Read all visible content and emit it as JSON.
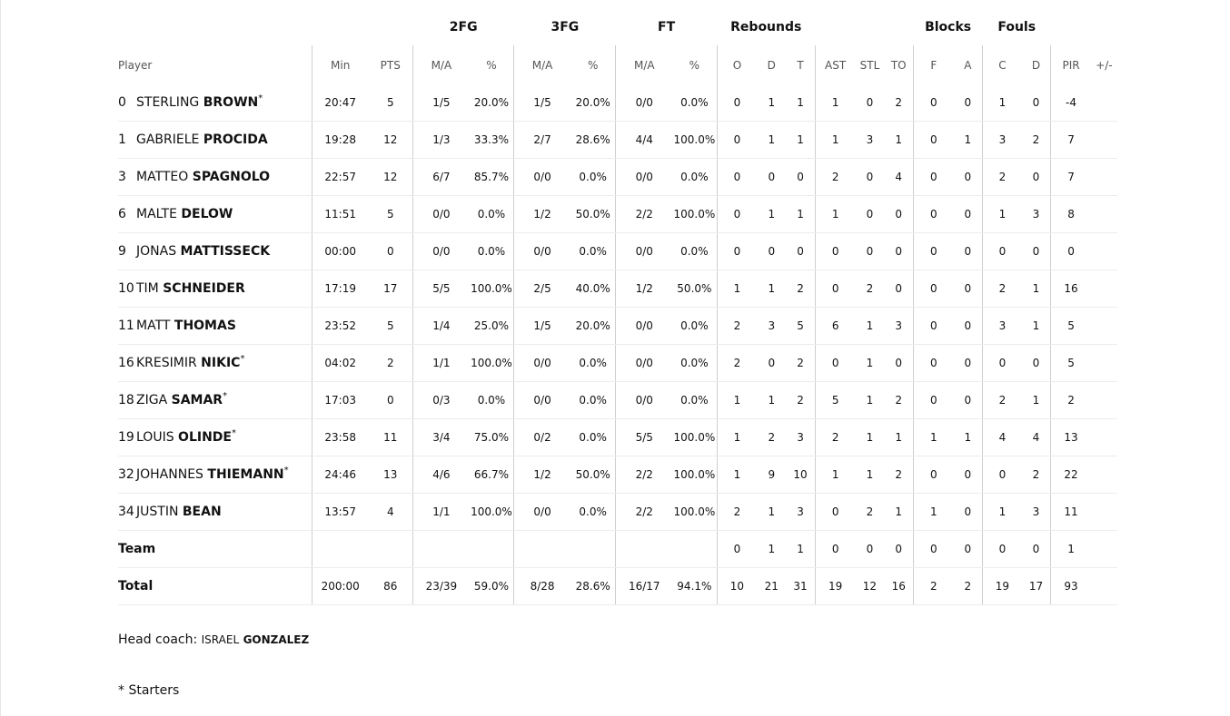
{
  "groups": {
    "fg2": "2FG",
    "fg3": "3FG",
    "ft": "FT",
    "reb": "Rebounds",
    "blk": "Blocks",
    "fouls": "Fouls"
  },
  "columns": {
    "player": "Player",
    "min": "Min",
    "pts": "PTS",
    "fg2_ma": "M/A",
    "fg2_pct": "%",
    "fg3_ma": "M/A",
    "fg3_pct": "%",
    "ft_ma": "M/A",
    "ft_pct": "%",
    "o": "O",
    "d": "D",
    "t": "T",
    "ast": "AST",
    "stl": "STL",
    "to": "TO",
    "bf": "F",
    "ba": "A",
    "fc": "C",
    "fd": "D",
    "pir": "PIR",
    "pm": "+/-"
  },
  "players": [
    {
      "num": "0",
      "first": "STERLING",
      "last": "BROWN",
      "starter": "*",
      "min": "20:47",
      "pts": "5",
      "fg2": "1/5",
      "fg2p": "20.0%",
      "fg3": "1/5",
      "fg3p": "20.0%",
      "ft": "0/0",
      "ftp": "0.0%",
      "o": "0",
      "d": "1",
      "t": "1",
      "ast": "1",
      "stl": "0",
      "to": "2",
      "bf": "0",
      "ba": "0",
      "fc": "1",
      "fd": "0",
      "pir": "-4",
      "pm": ""
    },
    {
      "num": "1",
      "first": "GABRIELE",
      "last": "PROCIDA",
      "starter": "",
      "min": "19:28",
      "pts": "12",
      "fg2": "1/3",
      "fg2p": "33.3%",
      "fg3": "2/7",
      "fg3p": "28.6%",
      "ft": "4/4",
      "ftp": "100.0%",
      "o": "0",
      "d": "1",
      "t": "1",
      "ast": "1",
      "stl": "3",
      "to": "1",
      "bf": "0",
      "ba": "1",
      "fc": "3",
      "fd": "2",
      "pir": "7",
      "pm": ""
    },
    {
      "num": "3",
      "first": "MATTEO",
      "last": "SPAGNOLO",
      "starter": "",
      "min": "22:57",
      "pts": "12",
      "fg2": "6/7",
      "fg2p": "85.7%",
      "fg3": "0/0",
      "fg3p": "0.0%",
      "ft": "0/0",
      "ftp": "0.0%",
      "o": "0",
      "d": "0",
      "t": "0",
      "ast": "2",
      "stl": "0",
      "to": "4",
      "bf": "0",
      "ba": "0",
      "fc": "2",
      "fd": "0",
      "pir": "7",
      "pm": ""
    },
    {
      "num": "6",
      "first": "MALTE",
      "last": "DELOW",
      "starter": "",
      "min": "11:51",
      "pts": "5",
      "fg2": "0/0",
      "fg2p": "0.0%",
      "fg3": "1/2",
      "fg3p": "50.0%",
      "ft": "2/2",
      "ftp": "100.0%",
      "o": "0",
      "d": "1",
      "t": "1",
      "ast": "1",
      "stl": "0",
      "to": "0",
      "bf": "0",
      "ba": "0",
      "fc": "1",
      "fd": "3",
      "pir": "8",
      "pm": ""
    },
    {
      "num": "9",
      "first": "JONAS",
      "last": "MATTISSECK",
      "starter": "",
      "min": "00:00",
      "pts": "0",
      "fg2": "0/0",
      "fg2p": "0.0%",
      "fg3": "0/0",
      "fg3p": "0.0%",
      "ft": "0/0",
      "ftp": "0.0%",
      "o": "0",
      "d": "0",
      "t": "0",
      "ast": "0",
      "stl": "0",
      "to": "0",
      "bf": "0",
      "ba": "0",
      "fc": "0",
      "fd": "0",
      "pir": "0",
      "pm": ""
    },
    {
      "num": "10",
      "first": "TIM",
      "last": "SCHNEIDER",
      "starter": "",
      "min": "17:19",
      "pts": "17",
      "fg2": "5/5",
      "fg2p": "100.0%",
      "fg3": "2/5",
      "fg3p": "40.0%",
      "ft": "1/2",
      "ftp": "50.0%",
      "o": "1",
      "d": "1",
      "t": "2",
      "ast": "0",
      "stl": "2",
      "to": "0",
      "bf": "0",
      "ba": "0",
      "fc": "2",
      "fd": "1",
      "pir": "16",
      "pm": ""
    },
    {
      "num": "11",
      "first": "MATT",
      "last": "THOMAS",
      "starter": "",
      "min": "23:52",
      "pts": "5",
      "fg2": "1/4",
      "fg2p": "25.0%",
      "fg3": "1/5",
      "fg3p": "20.0%",
      "ft": "0/0",
      "ftp": "0.0%",
      "o": "2",
      "d": "3",
      "t": "5",
      "ast": "6",
      "stl": "1",
      "to": "3",
      "bf": "0",
      "ba": "0",
      "fc": "3",
      "fd": "1",
      "pir": "5",
      "pm": ""
    },
    {
      "num": "16",
      "first": "KRESIMIR",
      "last": "NIKIC",
      "starter": "*",
      "min": "04:02",
      "pts": "2",
      "fg2": "1/1",
      "fg2p": "100.0%",
      "fg3": "0/0",
      "fg3p": "0.0%",
      "ft": "0/0",
      "ftp": "0.0%",
      "o": "2",
      "d": "0",
      "t": "2",
      "ast": "0",
      "stl": "1",
      "to": "0",
      "bf": "0",
      "ba": "0",
      "fc": "0",
      "fd": "0",
      "pir": "5",
      "pm": ""
    },
    {
      "num": "18",
      "first": "ZIGA",
      "last": "SAMAR",
      "starter": "*",
      "min": "17:03",
      "pts": "0",
      "fg2": "0/3",
      "fg2p": "0.0%",
      "fg3": "0/0",
      "fg3p": "0.0%",
      "ft": "0/0",
      "ftp": "0.0%",
      "o": "1",
      "d": "1",
      "t": "2",
      "ast": "5",
      "stl": "1",
      "to": "2",
      "bf": "0",
      "ba": "0",
      "fc": "2",
      "fd": "1",
      "pir": "2",
      "pm": ""
    },
    {
      "num": "19",
      "first": "LOUIS",
      "last": "OLINDE",
      "starter": "*",
      "min": "23:58",
      "pts": "11",
      "fg2": "3/4",
      "fg2p": "75.0%",
      "fg3": "0/2",
      "fg3p": "0.0%",
      "ft": "5/5",
      "ftp": "100.0%",
      "o": "1",
      "d": "2",
      "t": "3",
      "ast": "2",
      "stl": "1",
      "to": "1",
      "bf": "1",
      "ba": "1",
      "fc": "4",
      "fd": "4",
      "pir": "13",
      "pm": ""
    },
    {
      "num": "32",
      "first": "JOHANNES",
      "last": "THIEMANN",
      "starter": "*",
      "min": "24:46",
      "pts": "13",
      "fg2": "4/6",
      "fg2p": "66.7%",
      "fg3": "1/2",
      "fg3p": "50.0%",
      "ft": "2/2",
      "ftp": "100.0%",
      "o": "1",
      "d": "9",
      "t": "10",
      "ast": "1",
      "stl": "1",
      "to": "2",
      "bf": "0",
      "ba": "0",
      "fc": "0",
      "fd": "2",
      "pir": "22",
      "pm": ""
    },
    {
      "num": "34",
      "first": "JUSTIN",
      "last": "BEAN",
      "starter": "",
      "min": "13:57",
      "pts": "4",
      "fg2": "1/1",
      "fg2p": "100.0%",
      "fg3": "0/0",
      "fg3p": "0.0%",
      "ft": "2/2",
      "ftp": "100.0%",
      "o": "2",
      "d": "1",
      "t": "3",
      "ast": "0",
      "stl": "2",
      "to": "1",
      "bf": "1",
      "ba": "0",
      "fc": "1",
      "fd": "3",
      "pir": "11",
      "pm": ""
    }
  ],
  "team": {
    "label": "Team",
    "o": "0",
    "d": "1",
    "t": "1",
    "ast": "0",
    "stl": "0",
    "to": "0",
    "bf": "0",
    "ba": "0",
    "fc": "0",
    "fd": "0",
    "pir": "1"
  },
  "total": {
    "label": "Total",
    "min": "200:00",
    "pts": "86",
    "fg2": "23/39",
    "fg2p": "59.0%",
    "fg3": "8/28",
    "fg3p": "28.6%",
    "ft": "16/17",
    "ftp": "94.1%",
    "o": "10",
    "d": "21",
    "t": "31",
    "ast": "19",
    "stl": "12",
    "to": "16",
    "bf": "2",
    "ba": "2",
    "fc": "19",
    "fd": "17",
    "pir": "93"
  },
  "coach": {
    "label": "Head coach:",
    "first": "ISRAEL",
    "last": "GONZALEZ"
  },
  "starters_note": "* Starters"
}
